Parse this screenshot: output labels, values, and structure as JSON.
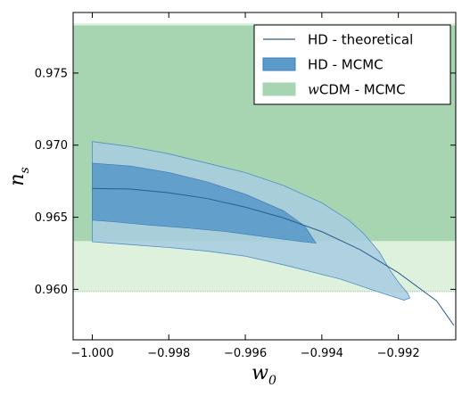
{
  "chart_data": {
    "type": "area",
    "xlim": [
      -1.0005,
      -0.9905
    ],
    "ylim": [
      0.9565,
      0.9792
    ],
    "x_ticks": [
      -1.0,
      -0.998,
      -0.996,
      -0.994,
      -0.992
    ],
    "x_tick_labels": [
      "−1.000",
      "−0.998",
      "−0.996",
      "−0.994",
      "−0.992"
    ],
    "y_ticks": [
      0.96,
      0.965,
      0.97,
      0.975
    ],
    "y_tick_labels": [
      "0.960",
      "0.965",
      "0.970",
      "0.975"
    ],
    "xlabel_base": "w",
    "xlabel_sub": "0",
    "ylabel_base": "n",
    "ylabel_sub": "s",
    "grid": false,
    "legend_position": "top-right",
    "series": [
      {
        "name_prefix": "w",
        "name": "CDM - MCMC",
        "kind": "band",
        "color": "#9fd0a4",
        "outer": [
          0.95985,
          0.97845
        ],
        "inner": [
          0.96335,
          0.9783
        ],
        "outer_color": "#def1dd",
        "inner_color": "#a7d4b1"
      },
      {
        "name": "HD - MCMC",
        "kind": "contours",
        "color": "#5b9ac9",
        "outer_color": "#a8cde0",
        "inner_color": "#5b9ac9",
        "outer_upper": [
          [
            -1.0,
            0.97025
          ],
          [
            -0.999,
            0.9699
          ],
          [
            -0.998,
            0.9694
          ],
          [
            -0.997,
            0.96875
          ],
          [
            -0.996,
            0.9681
          ],
          [
            -0.995,
            0.9672
          ],
          [
            -0.994,
            0.966
          ],
          [
            -0.9933,
            0.9648
          ],
          [
            -0.9929,
            0.96385
          ],
          [
            -0.9925,
            0.9626
          ],
          [
            -0.99225,
            0.96145
          ],
          [
            -0.992,
            0.9605
          ],
          [
            -0.99175,
            0.9597
          ],
          [
            -0.9917,
            0.9594
          ]
        ],
        "outer_lower": [
          [
            -0.9917,
            0.9594
          ],
          [
            -0.99185,
            0.95925
          ],
          [
            -0.9925,
            0.9598
          ],
          [
            -0.9935,
            0.9607
          ],
          [
            -0.995,
            0.9617
          ],
          [
            -0.996,
            0.9623
          ],
          [
            -0.997,
            0.96265
          ],
          [
            -0.998,
            0.9629
          ],
          [
            -0.999,
            0.9631
          ],
          [
            -1.0,
            0.9633
          ]
        ],
        "inner_upper": [
          [
            -1.0,
            0.96875
          ],
          [
            -0.999,
            0.96855
          ],
          [
            -0.998,
            0.9681
          ],
          [
            -0.997,
            0.96745
          ],
          [
            -0.996,
            0.9666
          ],
          [
            -0.995,
            0.96545
          ],
          [
            -0.99445,
            0.9644
          ],
          [
            -0.9942,
            0.9634
          ],
          [
            -0.99415,
            0.9632
          ]
        ],
        "inner_lower": [
          [
            -0.99415,
            0.9632
          ],
          [
            -0.9945,
            0.9633
          ],
          [
            -0.9955,
            0.96365
          ],
          [
            -0.9965,
            0.964
          ],
          [
            -0.9975,
            0.96425
          ],
          [
            -0.9985,
            0.96445
          ],
          [
            -0.9995,
            0.9647
          ],
          [
            -1.0,
            0.9648
          ]
        ]
      },
      {
        "name": "HD - theoretical",
        "kind": "line",
        "color": "#2a5d8f",
        "points": [
          [
            -1.0,
            0.967
          ],
          [
            -0.999,
            0.96695
          ],
          [
            -0.998,
            0.9667
          ],
          [
            -0.997,
            0.9663
          ],
          [
            -0.996,
            0.9657
          ],
          [
            -0.995,
            0.96495
          ],
          [
            -0.994,
            0.964
          ],
          [
            -0.993,
            0.96275
          ],
          [
            -0.992,
            0.96115
          ],
          [
            -0.991,
            0.9592
          ],
          [
            -0.99055,
            0.9575
          ]
        ]
      }
    ],
    "legend": [
      {
        "label": "HD - theoretical",
        "kind": "line",
        "color": "#2a5d8f"
      },
      {
        "label": "HD - MCMC",
        "kind": "patch",
        "color": "#5b9ac9",
        "edge": "#3b7cb8"
      },
      {
        "label_prefix": "w",
        "label": "CDM - MCMC",
        "kind": "patch",
        "color": "#a7d4b1",
        "edge": "#a7d4b1"
      }
    ]
  }
}
